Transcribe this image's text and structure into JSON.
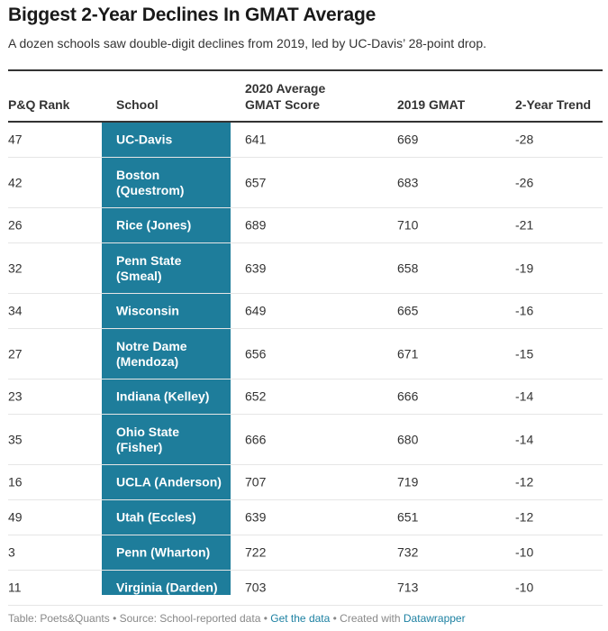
{
  "chart_data": {
    "type": "table",
    "title": "Biggest 2-Year Declines In GMAT Average",
    "subtitle": "A dozen schools saw double-digit declines from 2019, led by UC-Davis’ 28-point drop.",
    "columns": {
      "rank": "P&Q Rank",
      "school": "School",
      "gmat2020_line1": "2020 Average",
      "gmat2020_line2": "GMAT Score",
      "gmat2019": "2019 GMAT",
      "trend": "2-Year Trend"
    },
    "rows": [
      {
        "rank": "47",
        "school_lines": [
          "UC-Davis"
        ],
        "gmat2020": 641,
        "gmat2019": 669,
        "trend": -28
      },
      {
        "rank": "42",
        "school_lines": [
          "Boston",
          "(Questrom)"
        ],
        "gmat2020": 657,
        "gmat2019": 683,
        "trend": -26
      },
      {
        "rank": "26",
        "school_lines": [
          "Rice (Jones)"
        ],
        "gmat2020": 689,
        "gmat2019": 710,
        "trend": -21
      },
      {
        "rank": "32",
        "school_lines": [
          "Penn State",
          "(Smeal)"
        ],
        "gmat2020": 639,
        "gmat2019": 658,
        "trend": -19
      },
      {
        "rank": "34",
        "school_lines": [
          "Wisconsin"
        ],
        "gmat2020": 649,
        "gmat2019": 665,
        "trend": -16
      },
      {
        "rank": "27",
        "school_lines": [
          "Notre Dame",
          "(Mendoza)"
        ],
        "gmat2020": 656,
        "gmat2019": 671,
        "trend": -15
      },
      {
        "rank": "23",
        "school_lines": [
          "Indiana (Kelley)"
        ],
        "gmat2020": 652,
        "gmat2019": 666,
        "trend": -14
      },
      {
        "rank": "35",
        "school_lines": [
          "Ohio State",
          "(Fisher)"
        ],
        "gmat2020": 666,
        "gmat2019": 680,
        "trend": -14
      },
      {
        "rank": "16",
        "school_lines": [
          "UCLA (Anderson)"
        ],
        "gmat2020": 707,
        "gmat2019": 719,
        "trend": -12
      },
      {
        "rank": "49",
        "school_lines": [
          "Utah (Eccles)"
        ],
        "gmat2020": 639,
        "gmat2019": 651,
        "trend": -12
      },
      {
        "rank": "3",
        "school_lines": [
          "Penn (Wharton)"
        ],
        "gmat2020": 722,
        "gmat2019": 732,
        "trend": -10
      },
      {
        "rank": "11",
        "school_lines": [
          "Virginia (Darden)"
        ],
        "gmat2020": 703,
        "gmat2019": 713,
        "trend": -10
      }
    ]
  },
  "footer": {
    "source": "Table: Poets&Quants • Source: School-reported data •",
    "get_data": "Get the data",
    "created": "• Created with",
    "datawrapper": "Datawrapper"
  },
  "colors": {
    "school_column": "#1e7d9b",
    "link": "#1d81a2"
  }
}
